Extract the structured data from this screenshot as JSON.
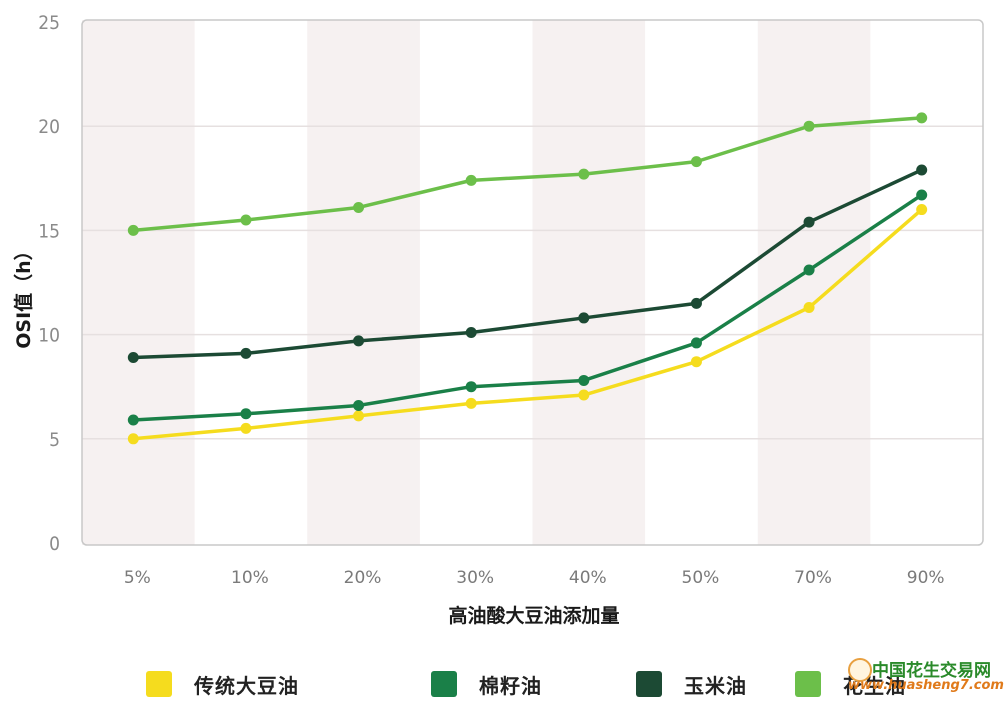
{
  "chart_data": {
    "type": "line",
    "title": "",
    "xlabel": "高油酸大豆油添加量",
    "ylabel": "OSI值（h）",
    "ylim": [
      0,
      25
    ],
    "yticks": [
      0,
      5,
      10,
      15,
      20,
      25
    ],
    "grid": true,
    "legend_position": "bottom",
    "categories": [
      "5%",
      "10%",
      "20%",
      "30%",
      "40%",
      "50%",
      "70%",
      "90%"
    ],
    "series": [
      {
        "name": "传统大豆油",
        "color": "#f5dc1e",
        "values": [
          5.0,
          5.5,
          6.1,
          6.7,
          7.1,
          8.7,
          11.3,
          16.0
        ]
      },
      {
        "name": "棉籽油",
        "color": "#1a8048",
        "values": [
          5.9,
          6.2,
          6.6,
          7.5,
          7.8,
          9.6,
          13.1,
          16.7
        ]
      },
      {
        "name": "玉米油",
        "color": "#1c4a34",
        "values": [
          8.9,
          9.1,
          9.7,
          10.1,
          10.8,
          11.5,
          15.4,
          17.9
        ]
      },
      {
        "name": "花生油",
        "color": "#6cbf4a",
        "values": [
          15.0,
          15.5,
          16.1,
          17.4,
          17.7,
          18.3,
          20.0,
          20.4
        ]
      }
    ]
  },
  "legend": {
    "items": [
      {
        "label": "传统大豆油",
        "color": "#f5dc1e"
      },
      {
        "label": "棉籽油",
        "color": "#1a8048"
      },
      {
        "label": "玉米油",
        "color": "#1c4a34"
      },
      {
        "label": "花生油",
        "color": "#6cbf4a"
      }
    ]
  },
  "watermark": {
    "title": "中国花生交易网",
    "url": "www.huasheng7.com"
  },
  "style": {
    "band_color": "#f6f1f1",
    "grid_color": "#e6e0e0",
    "frame_color": "#c8c8c8"
  }
}
